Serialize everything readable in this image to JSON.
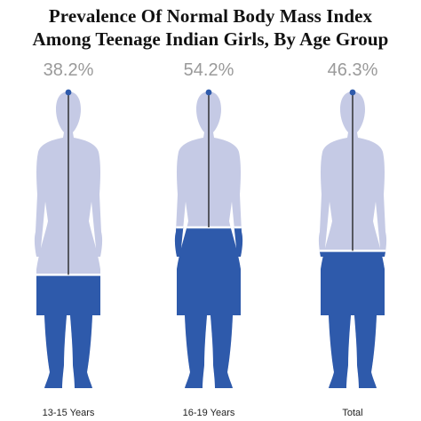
{
  "chart_data": {
    "type": "pictograph",
    "title_lines": [
      "Prevalence Of Normal Body Mass Index",
      "Among Teenage Indian Girls, By Age Group"
    ],
    "categories": [
      "13-15 Years",
      "16-19 Years",
      "Total"
    ],
    "values": [
      38.2,
      54.2,
      46.3
    ],
    "value_labels": [
      "38.2%",
      "54.2%",
      "46.3%"
    ],
    "unit": "%",
    "ylim": [
      0,
      100
    ],
    "colors": {
      "filled": "#2e5aab",
      "unfilled": "#c5cae5",
      "value_text": "#9a9a9a",
      "line": "#1a1a1a"
    }
  }
}
